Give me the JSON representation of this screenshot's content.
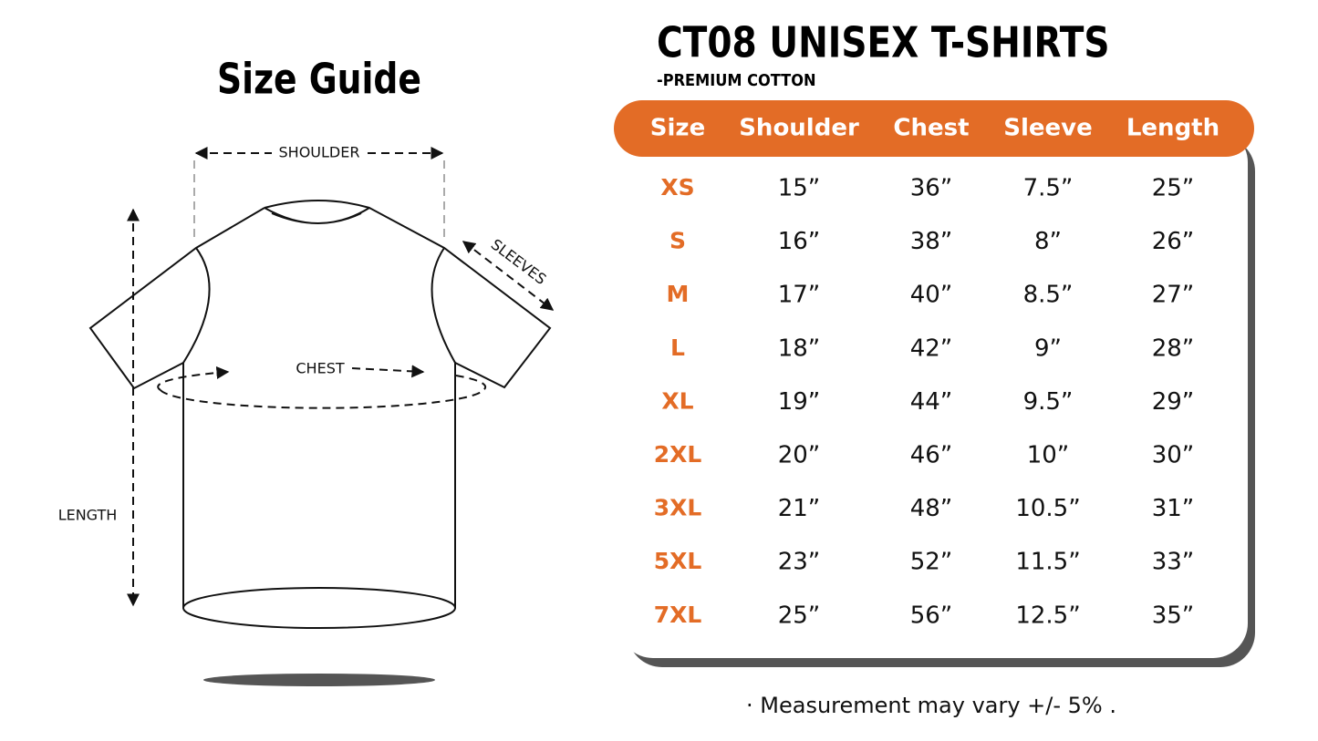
{
  "left": {
    "title": "Size Guide",
    "labels": {
      "shoulder": "SHOULDER",
      "sleeves": "SLEEVES",
      "chest": "CHEST",
      "length": "LENGTH"
    }
  },
  "right": {
    "title": "CT08 UNISEX T-SHIRTS",
    "subtitle": "-PREMIUM COTTON",
    "table": {
      "header": [
        "Size",
        "Shoulder",
        "Chest",
        "Sleeve",
        "Length"
      ],
      "rows": [
        [
          "XS",
          "15”",
          "36”",
          "7.5”",
          "25”"
        ],
        [
          "S",
          "16”",
          "38”",
          "8”",
          "26”"
        ],
        [
          "M",
          "17”",
          "40”",
          "8.5”",
          "27”"
        ],
        [
          "L",
          "18”",
          "42”",
          "9”",
          "28”"
        ],
        [
          "XL",
          "19”",
          "44”",
          "9.5”",
          "29”"
        ],
        [
          "2XL",
          "20”",
          "46”",
          "10”",
          "30”"
        ],
        [
          "3XL",
          "21”",
          "48”",
          "10.5”",
          "31”"
        ],
        [
          "5XL",
          "23”",
          "52”",
          "11.5”",
          "33”"
        ],
        [
          "7XL",
          "25”",
          "56”",
          "12.5”",
          "35”"
        ]
      ]
    },
    "note": "· Measurement may vary +/- 5% ."
  }
}
